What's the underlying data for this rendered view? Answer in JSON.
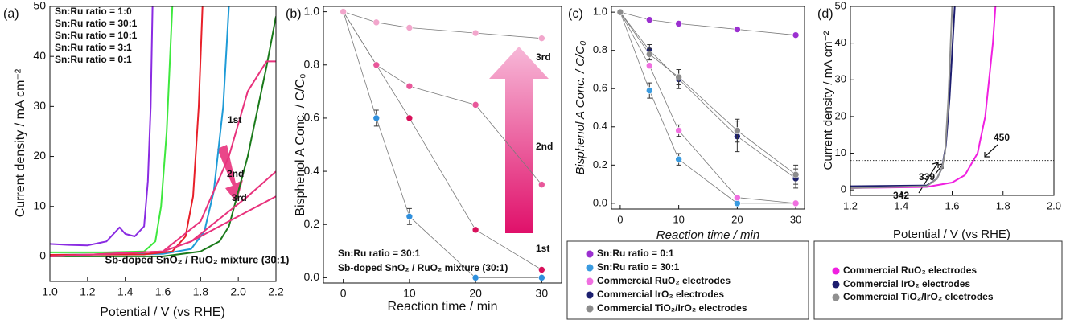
{
  "chart_data": [
    {
      "type": "line",
      "panel_label": "(a)",
      "xlabel": "Potential / V (vs RHE)",
      "ylabel": "Current density / mA cm⁻²",
      "xlim": [
        1.0,
        2.2
      ],
      "ylim": [
        -5,
        50
      ],
      "xticks": [
        {
          "value": 1.0,
          "label": "1.0"
        },
        {
          "value": 1.2,
          "label": "1.2"
        },
        {
          "value": 1.4,
          "label": "1.4"
        },
        {
          "value": 1.6,
          "label": "1.6"
        },
        {
          "value": 1.8,
          "label": "1.8"
        },
        {
          "value": 2.0,
          "label": "2.0"
        },
        {
          "value": 2.2,
          "label": "2.2"
        }
      ],
      "yticks": [
        0,
        10,
        20,
        30,
        40,
        50
      ],
      "series": [
        {
          "name": "Sn:Ru  ratio = 1:0",
          "color": "#1a7a1a",
          "x": [
            1.0,
            1.6,
            1.8,
            1.9,
            1.95,
            2.05,
            2.15,
            2.2
          ],
          "values": [
            0,
            0,
            1,
            3,
            6,
            20,
            38,
            48
          ]
        },
        {
          "name": "Sn:Ru  ratio = 30:1",
          "color": "#1e9bd7",
          "x": [
            1.0,
            1.6,
            1.75,
            1.82,
            1.87,
            1.92,
            1.95
          ],
          "values": [
            0.3,
            0.5,
            1.5,
            5,
            13,
            30,
            50
          ]
        },
        {
          "name": "Sn:Ru  ratio = 10:1",
          "color": "#e8202a",
          "x": [
            1.0,
            1.5,
            1.65,
            1.72,
            1.76,
            1.79,
            1.81
          ],
          "values": [
            0.3,
            0.4,
            1,
            4,
            12,
            30,
            50
          ]
        },
        {
          "name": "Sn:Ru  ratio = 3:1",
          "color": "#3ee83e",
          "x": [
            1.0,
            1.3,
            1.5,
            1.56,
            1.59,
            1.62,
            1.65
          ],
          "values": [
            0.8,
            0.8,
            1,
            3,
            10,
            25,
            50
          ]
        },
        {
          "name": "Sn:Ru  ratio = 0:1",
          "color": "#8a2be2",
          "x": [
            1.0,
            1.1,
            1.2,
            1.3,
            1.35,
            1.37,
            1.4,
            1.45,
            1.5,
            1.52,
            1.535,
            1.545
          ],
          "values": [
            2.5,
            2.3,
            2.2,
            3,
            5,
            5.8,
            4.5,
            4,
            6,
            15,
            30,
            50
          ]
        },
        {
          "name": "1st",
          "color": "#e8327c",
          "x": [
            1.0,
            1.6,
            1.8,
            1.95,
            2.05,
            2.15,
            2.2
          ],
          "values": [
            0,
            1,
            7,
            20,
            33,
            39,
            39
          ]
        },
        {
          "name": "2nd",
          "color": "#e8327c",
          "x": [
            1.0,
            1.6,
            1.75,
            1.85,
            1.95,
            2.05,
            2.2
          ],
          "values": [
            0,
            1,
            3,
            6,
            9,
            12,
            17
          ]
        },
        {
          "name": "3rd",
          "color": "#e8327c",
          "x": [
            1.0,
            1.6,
            1.75,
            1.85,
            2.05,
            2.2
          ],
          "values": [
            0,
            1,
            3,
            5,
            9,
            12
          ]
        }
      ],
      "annotations": [
        "Sb-doped SnO₂ / RuO₂ mixture (30:1)"
      ]
    },
    {
      "type": "line",
      "panel_label": "(b)",
      "xlabel": "Reaction time / min",
      "ylabel": "Bisphenol A Conc. / C/C₀",
      "xlim": [
        -3,
        33
      ],
      "ylim": [
        -0.02,
        1.02
      ],
      "xticks": [
        0,
        10,
        20,
        30
      ],
      "yticks": [
        {
          "value": 0,
          "label": "0.0"
        },
        {
          "value": 0.2,
          "label": "0.2"
        },
        {
          "value": 0.4,
          "label": "0.4"
        },
        {
          "value": 0.6,
          "label": "0.6"
        },
        {
          "value": 0.8,
          "label": "0.8"
        },
        {
          "value": 1.0,
          "label": "1.0"
        }
      ],
      "markers": true,
      "line_color": "#7a7a7a",
      "x": [
        0,
        5,
        10,
        20,
        30
      ],
      "series": [
        {
          "name": "Sn:Ru  ratio = 30:1",
          "color": "#2f8fdc",
          "values": [
            1,
            0.6,
            0.23,
            0,
            0
          ],
          "err": [
            0,
            0.03,
            0.03,
            0,
            0
          ]
        },
        {
          "name": "1st",
          "color": "#d8105a",
          "values": [
            1,
            0.8,
            0.6,
            0.18,
            0.03
          ]
        },
        {
          "name": "2nd",
          "color": "#e8589a",
          "values": [
            1,
            0.8,
            0.72,
            0.65,
            0.35
          ]
        },
        {
          "name": "3rd",
          "color": "#f2a6cc",
          "values": [
            1,
            0.96,
            0.94,
            0.92,
            0.9
          ]
        }
      ],
      "annotations": [
        "Sb-doped SnO₂ / RuO₂ mixture (30:1)"
      ]
    },
    {
      "type": "line",
      "panel_label": "(c)",
      "xlabel": "Reaction time / min",
      "ylabel": "Bisphenol A Conc. / C/C₀",
      "xlim": [
        -1.5,
        31.5
      ],
      "ylim": [
        -0.03,
        1.03
      ],
      "xticks": [
        0,
        10,
        20,
        30
      ],
      "yticks": [
        {
          "value": 0,
          "label": "0.0"
        },
        {
          "value": 0.2,
          "label": "0.2"
        },
        {
          "value": 0.4,
          "label": "0.4"
        },
        {
          "value": 0.6,
          "label": "0.6"
        },
        {
          "value": 0.8,
          "label": "0.8"
        },
        {
          "value": 1.0,
          "label": "1.0"
        }
      ],
      "markers": true,
      "line_color": "#7a7a7a",
      "x": [
        0,
        5,
        10,
        20,
        30
      ],
      "series": [
        {
          "name": "Sn:Ru  ratio = 0:1",
          "color": "#9b30d0",
          "values": [
            1,
            0.96,
            0.94,
            0.91,
            0.88
          ],
          "err": [
            0,
            0,
            0,
            0,
            0
          ]
        },
        {
          "name": "Sn:Ru  ratio = 30:1",
          "color": "#3a9be0",
          "values": [
            1,
            0.59,
            0.23,
            0,
            0
          ],
          "err": [
            0,
            0.04,
            0.03,
            0,
            0
          ]
        },
        {
          "name": "Commercial RuO₂ electrodes",
          "color": "#f070e0",
          "values": [
            1,
            0.72,
            0.38,
            0.03,
            0
          ],
          "err": [
            0,
            0,
            0.03,
            0,
            0
          ]
        },
        {
          "name": "Commercial IrO₂ electrodes",
          "color": "#1c2070",
          "values": [
            1,
            0.8,
            0.65,
            0.35,
            0.13
          ],
          "err": [
            0,
            0.03,
            0.05,
            0.08,
            0.05
          ]
        },
        {
          "name": "Commercial TiO₂/IrO₂ electrodes",
          "color": "#8c8c8c",
          "values": [
            1,
            0.78,
            0.66,
            0.38,
            0.15
          ],
          "err": [
            0,
            0.03,
            0.04,
            0.06,
            0.05
          ]
        }
      ]
    },
    {
      "type": "line",
      "panel_label": "(d)",
      "xlabel": "Potential / V (vs RHE)",
      "ylabel": "Current density / mA cm⁻²",
      "xlim": [
        1.2,
        2.0
      ],
      "ylim": [
        -1.5,
        50
      ],
      "xticks": [
        {
          "value": 1.2,
          "label": "1.2"
        },
        {
          "value": 1.4,
          "label": "1.4"
        },
        {
          "value": 1.6,
          "label": "1.6"
        },
        {
          "value": 1.8,
          "label": "1.8"
        },
        {
          "value": 2.0,
          "label": "2.0"
        }
      ],
      "yticks": [
        0,
        10,
        20,
        30,
        40,
        50
      ],
      "hline": 8,
      "series": [
        {
          "name": "Commercial RuO₂ electrodes",
          "color": "#f020e0",
          "x": [
            1.2,
            1.5,
            1.6,
            1.65,
            1.7,
            1.73,
            1.76,
            1.77
          ],
          "values": [
            0.5,
            0.8,
            2,
            4,
            10,
            20,
            40,
            50
          ]
        },
        {
          "name": "Commercial IrO₂ electrodes",
          "color": "#1c1c6e",
          "x": [
            1.2,
            1.5,
            1.54,
            1.56,
            1.575,
            1.59,
            1.61
          ],
          "values": [
            1,
            1.2,
            3,
            6,
            12,
            25,
            50
          ]
        },
        {
          "name": "Commercial TiO₂/IrO₂ electrodes",
          "color": "#909090",
          "x": [
            1.2,
            1.5,
            1.54,
            1.56,
            1.572,
            1.585,
            1.6
          ],
          "values": [
            0.5,
            1,
            3,
            6,
            10,
            25,
            50
          ]
        }
      ],
      "annotations": [
        "339",
        "342",
        "450"
      ]
    }
  ]
}
